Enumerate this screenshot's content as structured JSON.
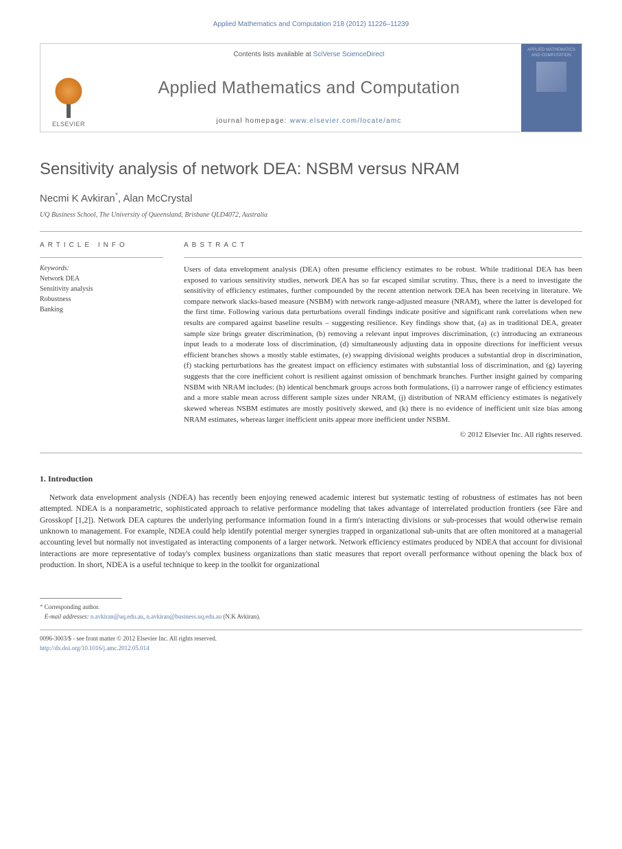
{
  "running_head": "Applied Mathematics and Computation 218 (2012) 11226–11239",
  "masthead": {
    "publisher": "ELSEVIER",
    "contents_prefix": "Contents lists available at ",
    "contents_link": "SciVerse ScienceDirect",
    "journal": "Applied Mathematics and Computation",
    "homepage_prefix": "journal homepage: ",
    "homepage_url": "www.elsevier.com/locate/amc",
    "cover_caption": "APPLIED MATHEMATICS AND COMPUTATION"
  },
  "article": {
    "title": "Sensitivity analysis of network DEA: NSBM versus NRAM",
    "authors": "Necmi K Avkiran",
    "authors_2": ", Alan McCrystal",
    "corr_mark": "*",
    "affiliation": "UQ Business School, The University of Queensland, Brisbane QLD4072, Australia"
  },
  "labels": {
    "article_info": "ARTICLE INFO",
    "abstract": "ABSTRACT",
    "keywords": "Keywords:"
  },
  "keywords": [
    "Network DEA",
    "Sensitivity analysis",
    "Robustness",
    "Banking"
  ],
  "abstract": "Users of data envelopment analysis (DEA) often presume efficiency estimates to be robust. While traditional DEA has been exposed to various sensitivity studies, network DEA has so far escaped similar scrutiny. Thus, there is a need to investigate the sensitivity of efficiency estimates, further compounded by the recent attention network DEA has been receiving in literature. We compare network slacks-based measure (NSBM) with network range-adjusted measure (NRAM), where the latter is developed for the first time. Following various data perturbations overall findings indicate positive and significant rank correlations when new results are compared against baseline results – suggesting resilience. Key findings show that, (a) as in traditional DEA, greater sample size brings greater discrimination, (b) removing a relevant input improves discrimination, (c) introducing an extraneous input leads to a moderate loss of discrimination, (d) simultaneously adjusting data in opposite directions for inefficient versus efficient branches shows a mostly stable estimates, (e) swapping divisional weights produces a substantial drop in discrimination, (f) stacking perturbations has the greatest impact on efficiency estimates with substantial loss of discrimination, and (g) layering suggests that the core inefficient cohort is resilient against omission of benchmark branches. Further insight gained by comparing NSBM with NRAM includes: (h) identical benchmark groups across both formulations, (i) a narrower range of efficiency estimates and a more stable mean across different sample sizes under NRAM, (j) distribution of NRAM efficiency estimates is negatively skewed whereas NSBM estimates are mostly positively skewed, and (k) there is no evidence of inefficient unit size bias among NRAM estimates, whereas larger inefficient units appear more inefficient under NSBM.",
  "copyright": "© 2012 Elsevier Inc. All rights reserved.",
  "intro": {
    "head": "1. Introduction",
    "para": "Network data envelopment analysis (NDEA) has recently been enjoying renewed academic interest but systematic testing of robustness of estimates has not been attempted. NDEA is a nonparametric, sophisticated approach to relative performance modeling that takes advantage of interrelated production frontiers (see Färe and Grosskopf [1,2]). Network DEA captures the underlying performance information found in a firm's interacting divisions or sub-processes that would otherwise remain unknown to management. For example, NDEA could help identify potential merger synergies trapped in organizational sub-units that are often monitored at a managerial accounting level but normally not investigated as interacting components of a larger network. Network efficiency estimates produced by NDEA that account for divisional interactions are more representative of today's complex business organizations than static measures that report overall performance without opening the black box of production. In short, NDEA is a useful technique to keep in the toolkit for organizational"
  },
  "footnotes": {
    "corr_label": "* Corresponding author.",
    "email_label": "E-mail addresses:",
    "email1": "n.avkiran@uq.edu.au",
    "email2": "n.avkiran@business.uq.edu.au",
    "email_name": " (N.K Avkiran)."
  },
  "bottom": {
    "issn": "0096-3003/$ - see front matter © 2012 Elsevier Inc. All rights reserved.",
    "doi": "http://dx.doi.org/10.1016/j.amc.2012.05.014"
  }
}
